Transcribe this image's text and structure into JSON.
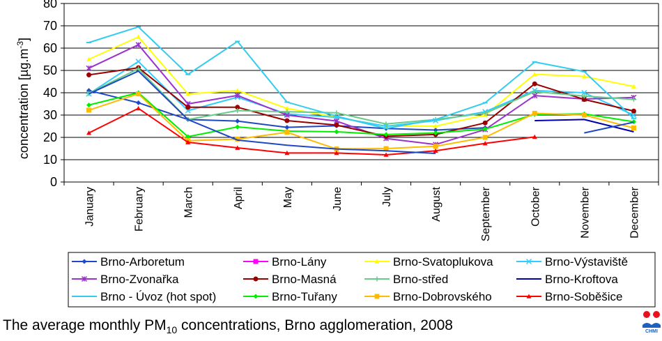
{
  "chart_data": {
    "type": "line",
    "ylabel_main": "concentration",
    "ylabel_unit_prefix": "[µg.m",
    "ylabel_unit_exp": "-3",
    "ylabel_unit_suffix": "]",
    "ylim": [
      0,
      80
    ],
    "yticks": [
      0,
      10,
      20,
      30,
      40,
      50,
      60,
      70,
      80
    ],
    "grid": true,
    "legend_position": "bottom",
    "categories": [
      "January",
      "February",
      "March",
      "April",
      "May",
      "June",
      "July",
      "August",
      "September",
      "October",
      "November",
      "December"
    ],
    "series": [
      {
        "name": "Brno-Arboretum",
        "color": "#1f48c4",
        "marker": "diamond",
        "values": [
          41,
          35.5,
          28,
          27.3,
          24.5,
          25.2,
          24,
          23.3,
          24.3,
          null,
          null,
          null
        ]
      },
      {
        "name": "Brno-Lány",
        "color": "#ff00ff",
        "marker": "square",
        "values": [
          null,
          null,
          null,
          null,
          null,
          null,
          null,
          null,
          null,
          null,
          null,
          null
        ]
      },
      {
        "name": "Brno-Svatoplukova",
        "color": "#ffff00",
        "marker": "triangle",
        "values": [
          55,
          65,
          39.5,
          41,
          33,
          29,
          25,
          25,
          30,
          48.3,
          47.3,
          42.8
        ]
      },
      {
        "name": "Brno-Výstaviště",
        "color": "#33ccff",
        "marker": "x",
        "values": [
          39.5,
          54,
          32,
          38,
          30.5,
          29,
          25,
          27.5,
          31.5,
          41,
          40,
          30
        ]
      },
      {
        "name": "Brno-Zvonařka",
        "color": "#9933cc",
        "marker": "star",
        "values": [
          51,
          61.5,
          35,
          38.8,
          30,
          27.3,
          19.5,
          16.8,
          23.5,
          38.7,
          37.2,
          37.9
        ]
      },
      {
        "name": "Brno-Masná",
        "color": "#990000",
        "marker": "circle",
        "values": [
          48,
          51.2,
          33.5,
          33.5,
          27.5,
          25.5,
          20.5,
          21.3,
          26.5,
          44,
          37,
          31.8
        ]
      },
      {
        "name": "Brno-střed",
        "color": "#66cc88",
        "marker": "plus",
        "values": [
          39.7,
          50.8,
          28,
          32,
          31.5,
          31,
          26,
          28,
          30.8,
          40.5,
          38.5,
          37
        ]
      },
      {
        "name": "Brno-Kroftova",
        "color": "#0000aa",
        "marker": "none",
        "values": [
          null,
          null,
          null,
          null,
          null,
          null,
          null,
          null,
          null,
          27.5,
          28,
          22.5
        ]
      },
      {
        "name": "Brno - Úvoz (hot spot)",
        "color": "#33ccee",
        "marker": "dash",
        "values": [
          62.5,
          69.5,
          48.2,
          63,
          35.8,
          29.5,
          24,
          28,
          35.5,
          53.8,
          49.5,
          28.5
        ]
      },
      {
        "name": "Brno-Tuřany",
        "color": "#00ee00",
        "marker": "diamond",
        "values": [
          34.5,
          40,
          20.3,
          24.7,
          22.8,
          22.5,
          21.3,
          22,
          23.7,
          30.3,
          30.5,
          27
        ]
      },
      {
        "name": "Brno-Dobrovského",
        "color": "#ffbb00",
        "marker": "square",
        "values": [
          32.2,
          39.5,
          18.5,
          19.2,
          22.3,
          14.8,
          15,
          16,
          20,
          30.8,
          30,
          24.2
        ]
      },
      {
        "name": "Brno-Soběšice",
        "color": "#ff0000",
        "marker": "triangle",
        "values": [
          22,
          33,
          17.8,
          15.3,
          13,
          13,
          12.2,
          14,
          17.3,
          20.2,
          null,
          null
        ]
      }
    ],
    "extra_segments": [
      {
        "series": "Brno-Arboretum",
        "color": "#1f48c4",
        "marker": "none",
        "values": [
          39.5,
          49.7,
          28,
          18.8,
          16.5,
          14.8,
          14,
          12.8,
          null,
          null,
          22,
          26.8
        ]
      }
    ]
  },
  "caption": {
    "pre": "The average monthly PM",
    "sub": "10",
    "post": " concentrations, Brno agglomeration, 2008"
  },
  "logo": {
    "text": "CHMI",
    "color_red": "#e8121c",
    "color_blue": "#1f5fbf"
  }
}
